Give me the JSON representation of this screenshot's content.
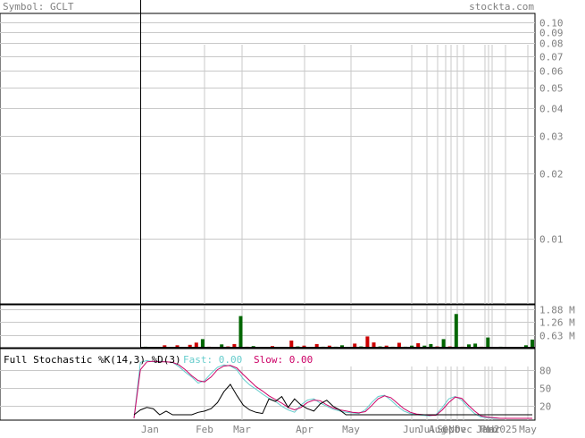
{
  "header": {
    "symbol_text": "Symbol: GCLT",
    "brand_text": "stockta.com"
  },
  "colors": {
    "grid": "#c8c8c8",
    "frame": "#000000",
    "text_gray": "#808080",
    "volume_up": "#006600",
    "volume_down": "#cc0000",
    "fast_line": "#66cccc",
    "slow_line": "#cc0066",
    "stoch_black": "#000000"
  },
  "chart_data": [
    {
      "type": "line",
      "panel": "price",
      "yscale": "log",
      "ylim": [
        0.005,
        0.11
      ],
      "yticks": [
        "0.10",
        "0.09",
        "0.08",
        "0.07",
        "0.06",
        "0.05",
        "0.04",
        "0.03",
        "0.02",
        "0.01"
      ],
      "ytick_values": [
        0.1,
        0.09,
        0.08,
        0.07,
        0.06,
        0.05,
        0.04,
        0.03,
        0.02,
        0.01
      ],
      "grid": true
    },
    {
      "type": "bar",
      "panel": "volume",
      "yticks": [
        "1.88 M",
        "1.26 M",
        "0.63 M"
      ],
      "ytick_values": [
        1.88,
        1.26,
        0.63
      ],
      "ylim": [
        0,
        2.1
      ],
      "bars": [
        {
          "v": 0.05,
          "up": true
        },
        {
          "v": 0.04,
          "up": false
        },
        {
          "v": 0.03,
          "up": true
        },
        {
          "v": 0.12,
          "up": false
        },
        {
          "v": 0.03,
          "up": true
        },
        {
          "v": 0.12,
          "up": false
        },
        {
          "v": 0.04,
          "up": true
        },
        {
          "v": 0.14,
          "up": false
        },
        {
          "v": 0.25,
          "up": false
        },
        {
          "v": 0.42,
          "up": true
        },
        {
          "v": 0.05,
          "up": false
        },
        {
          "v": 0.04,
          "up": true
        },
        {
          "v": 0.16,
          "up": true
        },
        {
          "v": 0.06,
          "up": false
        },
        {
          "v": 0.18,
          "up": false
        },
        {
          "v": 1.55,
          "up": true
        },
        {
          "v": 0.05,
          "up": false
        },
        {
          "v": 0.08,
          "up": true
        },
        {
          "v": 0.04,
          "up": false
        },
        {
          "v": 0.03,
          "up": true
        },
        {
          "v": 0.08,
          "up": false
        },
        {
          "v": 0.03,
          "up": true
        },
        {
          "v": 0.04,
          "up": false
        },
        {
          "v": 0.35,
          "up": false
        },
        {
          "v": 0.06,
          "up": true
        },
        {
          "v": 0.1,
          "up": false
        },
        {
          "v": 0.04,
          "up": true
        },
        {
          "v": 0.18,
          "up": false
        },
        {
          "v": 0.05,
          "up": true
        },
        {
          "v": 0.1,
          "up": false
        },
        {
          "v": 0.05,
          "up": true
        },
        {
          "v": 0.12,
          "up": true
        },
        {
          "v": 0.03,
          "up": false
        },
        {
          "v": 0.2,
          "up": false
        },
        {
          "v": 0.06,
          "up": true
        },
        {
          "v": 0.55,
          "up": false
        },
        {
          "v": 0.26,
          "up": false
        },
        {
          "v": 0.06,
          "up": true
        },
        {
          "v": 0.1,
          "up": false
        },
        {
          "v": 0.05,
          "up": true
        },
        {
          "v": 0.24,
          "up": false
        },
        {
          "v": 0.05,
          "up": true
        },
        {
          "v": 0.1,
          "up": true
        },
        {
          "v": 0.22,
          "up": false
        },
        {
          "v": 0.1,
          "up": true
        },
        {
          "v": 0.18,
          "up": true
        },
        {
          "v": 0.06,
          "up": false
        },
        {
          "v": 0.42,
          "up": true
        },
        {
          "v": 0.06,
          "up": false
        },
        {
          "v": 1.65,
          "up": true
        },
        {
          "v": 0.05,
          "up": false
        },
        {
          "v": 0.16,
          "up": true
        },
        {
          "v": 0.2,
          "up": true
        },
        {
          "v": 0.05,
          "up": false
        },
        {
          "v": 0.5,
          "up": true
        },
        {
          "v": 0.03,
          "up": false
        },
        {
          "v": 0.05,
          "up": true
        },
        {
          "v": 0.02,
          "up": false
        },
        {
          "v": 0.04,
          "up": true
        },
        {
          "v": 0.03,
          "up": false
        },
        {
          "v": 0.12,
          "up": true
        },
        {
          "v": 0.4,
          "up": true
        }
      ],
      "grid": true
    },
    {
      "type": "line",
      "panel": "stochastic",
      "title": "Full Stochastic %K(14,3) %D(3)",
      "fast_label": "Fast: 0.00",
      "slow_label": "Slow: 0.00",
      "yticks": [
        "80",
        "50",
        "20"
      ],
      "ytick_values": [
        80,
        50,
        20
      ],
      "ylim": [
        0,
        100
      ],
      "series": [
        {
          "name": "Fast",
          "values": [
            0,
            92,
            95,
            93,
            94,
            93,
            92,
            85,
            76,
            68,
            58,
            62,
            74,
            84,
            88,
            86,
            80,
            65,
            55,
            48,
            40,
            33,
            28,
            20,
            14,
            10,
            22,
            30,
            32,
            25,
            20,
            15,
            12,
            10,
            9,
            8,
            14,
            26,
            36,
            38,
            30,
            20,
            12,
            8,
            6,
            5,
            4,
            6,
            18,
            32,
            36,
            30,
            18,
            8,
            2,
            1,
            0,
            0,
            0,
            0,
            0,
            0,
            0
          ]
        },
        {
          "name": "Slow",
          "values": [
            0,
            80,
            93,
            94,
            93,
            93,
            92,
            88,
            80,
            70,
            62,
            60,
            68,
            80,
            86,
            87,
            83,
            72,
            62,
            52,
            45,
            37,
            31,
            25,
            18,
            14,
            18,
            26,
            30,
            29,
            22,
            17,
            14,
            12,
            10,
            9,
            11,
            21,
            32,
            37,
            34,
            25,
            16,
            10,
            7,
            6,
            5,
            5,
            14,
            26,
            35,
            33,
            22,
            12,
            4,
            2,
            1,
            0,
            0,
            0,
            0,
            0,
            0
          ]
        },
        {
          "name": "",
          "values": [
            0,
            8,
            12,
            10,
            0,
            6,
            0,
            0,
            0,
            0,
            4,
            6,
            10,
            20,
            38,
            50,
            32,
            16,
            8,
            4,
            2,
            26,
            22,
            30,
            12,
            26,
            16,
            10,
            6,
            18,
            24,
            14,
            8,
            0,
            0,
            0,
            0,
            0,
            0,
            0,
            0,
            0,
            0,
            0,
            0,
            0,
            0,
            0,
            0,
            0,
            0,
            0,
            0,
            0,
            0,
            0,
            0,
            0,
            0,
            0,
            0,
            0,
            0
          ]
        }
      ],
      "grid": true
    }
  ],
  "x_axis": {
    "labels": [
      "Jan",
      "Feb",
      "Mar",
      "Apr",
      "May",
      "Jun",
      "Jul",
      "Aug",
      "Sep",
      "Oct",
      "Nov",
      "Dec",
      "Jan",
      "Feb",
      "Mar",
      "2025",
      "May"
    ]
  }
}
